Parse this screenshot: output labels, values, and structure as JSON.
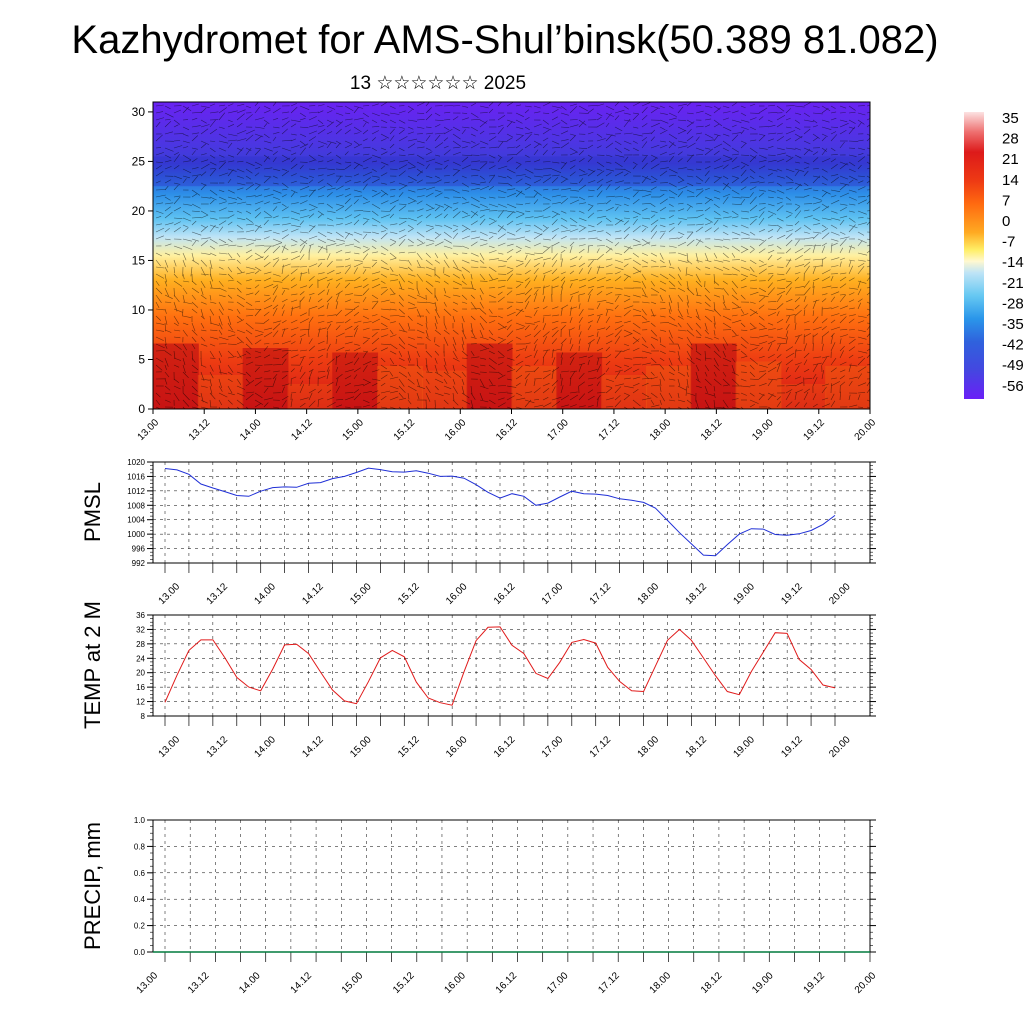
{
  "title": "Kazhydromet for AMS-Shul’binsk(50.389 81.082)",
  "subtitle": "13 ☆☆☆☆☆☆ 2025",
  "chart_data": [
    {
      "type": "heatmap",
      "id": "cross-section",
      "y_ticks": [
        "0",
        "5",
        "10",
        "15",
        "20",
        "25",
        "30"
      ],
      "ylim": [
        0,
        31
      ],
      "x_ticks": [
        "13.00",
        "13.12",
        "14.00",
        "14.12",
        "15.00",
        "15.12",
        "16.00",
        "16.12",
        "17.00",
        "17.12",
        "18.00",
        "18.12",
        "19.00",
        "19.12",
        "20.00"
      ],
      "colorbar_labels": [
        "35",
        "28",
        "21",
        "14",
        "7",
        "0",
        "-7",
        "-14",
        "-21",
        "-28",
        "-35",
        "-42",
        "-49",
        "-56"
      ],
      "colors": [
        "#fce2e2",
        "#ee6f6f",
        "#dd1a1a",
        "#ee3a14",
        "#ff5511",
        "#ff8820",
        "#ffbb2a",
        "#ffee66",
        "#fff8d0",
        "#bfe4f6",
        "#66c8f2",
        "#2a96ea",
        "#2f62dd",
        "#4447e0",
        "#5a2ef0",
        "#6a1ff7"
      ],
      "surface_temperature_by_x": [
        31,
        24,
        30,
        22,
        29,
        26,
        25,
        31,
        26,
        29,
        24,
        26,
        31,
        27,
        22,
        26
      ]
    },
    {
      "type": "line",
      "id": "pmsl",
      "ylabel": "PMSL",
      "ylim": [
        992,
        1020
      ],
      "y_ticks": [
        "992",
        "996",
        "1000",
        "1004",
        "1008",
        "1012",
        "1016",
        "1020"
      ],
      "x_ticks": [
        "13.00",
        "13.12",
        "14.00",
        "14.12",
        "15.00",
        "15.12",
        "16.00",
        "16.12",
        "17.00",
        "17.12",
        "18.00",
        "18.12",
        "19.00",
        "19.12",
        "20.00"
      ],
      "x": [
        0,
        3,
        6,
        9,
        12,
        15,
        18,
        21,
        24,
        27,
        30,
        33,
        36,
        39,
        42,
        45,
        48,
        51,
        54,
        57,
        60,
        63,
        66,
        69,
        72,
        75,
        78,
        81,
        84,
        87,
        90,
        93,
        96,
        99,
        102,
        105,
        108,
        111,
        114,
        117,
        120,
        123,
        126,
        129,
        132,
        135,
        138,
        141,
        144,
        147,
        150,
        153,
        156,
        159,
        162,
        165,
        168
      ],
      "series": [
        {
          "color": "#1f2fd6",
          "values": [
            1018.2,
            1017.8,
            1016.6,
            1013.9,
            1012.8,
            1011.8,
            1010.7,
            1010.5,
            1011.9,
            1012.9,
            1013.1,
            1013.0,
            1014.1,
            1014.3,
            1015.4,
            1016.0,
            1017.1,
            1018.3,
            1017.9,
            1017.3,
            1017.2,
            1017.6,
            1016.9,
            1016.0,
            1016.1,
            1015.5,
            1013.7,
            1011.6,
            1010.0,
            1011.2,
            1010.5,
            1008.0,
            1008.6,
            1010.3,
            1011.9,
            1011.2,
            1011.1,
            1010.7,
            1009.8,
            1009.4,
            1008.8,
            1007.2,
            1003.8,
            1000.4,
            997.3,
            994.2,
            994.0,
            997.1,
            1000.0,
            1001.5,
            1001.4,
            999.9,
            999.7,
            1000.1,
            1001.0,
            1002.7,
            1005.2
          ]
        }
      ]
    },
    {
      "type": "line",
      "id": "temp2m",
      "ylabel": "TEMP at 2 M",
      "ylim": [
        8,
        36
      ],
      "y_ticks": [
        "8",
        "12",
        "16",
        "20",
        "24",
        "28",
        "32",
        "36"
      ],
      "x_ticks": [
        "13.00",
        "13.12",
        "14.00",
        "14.12",
        "15.00",
        "15.12",
        "16.00",
        "16.12",
        "17.00",
        "17.12",
        "18.00",
        "18.12",
        "19.00",
        "19.12",
        "20.00"
      ],
      "x": [
        0,
        3,
        6,
        9,
        12,
        15,
        18,
        21,
        24,
        27,
        30,
        33,
        36,
        39,
        42,
        45,
        48,
        51,
        54,
        57,
        60,
        63,
        66,
        69,
        72,
        75,
        78,
        81,
        84,
        87,
        90,
        93,
        96,
        99,
        102,
        105,
        108,
        111,
        114,
        117,
        120,
        123,
        126,
        129,
        132,
        135,
        138,
        141,
        144,
        147,
        150,
        153,
        156,
        159,
        162,
        165,
        168
      ],
      "series": [
        {
          "color": "#e01a1a",
          "values": [
            11.8,
            19.3,
            26.2,
            29.1,
            29.1,
            24.2,
            18.7,
            16.0,
            15.0,
            21.0,
            27.7,
            27.9,
            25.3,
            20.2,
            15.2,
            12.2,
            11.4,
            17.5,
            24.1,
            26.2,
            24.4,
            17.4,
            13.0,
            11.7,
            11.0,
            20.3,
            28.9,
            32.6,
            32.7,
            27.6,
            25.3,
            19.8,
            18.4,
            22.9,
            28.4,
            29.2,
            28.2,
            21.5,
            17.6,
            15.0,
            14.8,
            21.9,
            29.0,
            32.0,
            29.0,
            24.1,
            19.2,
            14.8,
            13.9,
            20.3,
            25.7,
            31.1,
            30.9,
            23.7,
            20.9,
            16.6,
            15.8
          ]
        }
      ]
    },
    {
      "type": "line",
      "id": "precip",
      "ylabel": "PRECIP, mm",
      "ylim": [
        0,
        1
      ],
      "y_ticks": [
        "0.0",
        "0.2",
        "0.4",
        "0.6",
        "0.8",
        "1.0"
      ],
      "x_ticks": [
        "13.00",
        "13.12",
        "14.00",
        "14.12",
        "15.00",
        "15.12",
        "16.00",
        "16.12",
        "17.00",
        "17.12",
        "18.00",
        "18.12",
        "19.00",
        "19.12",
        "20.00"
      ],
      "series": [
        {
          "color": "#007a3d",
          "values": [
            0,
            0
          ]
        }
      ]
    }
  ]
}
